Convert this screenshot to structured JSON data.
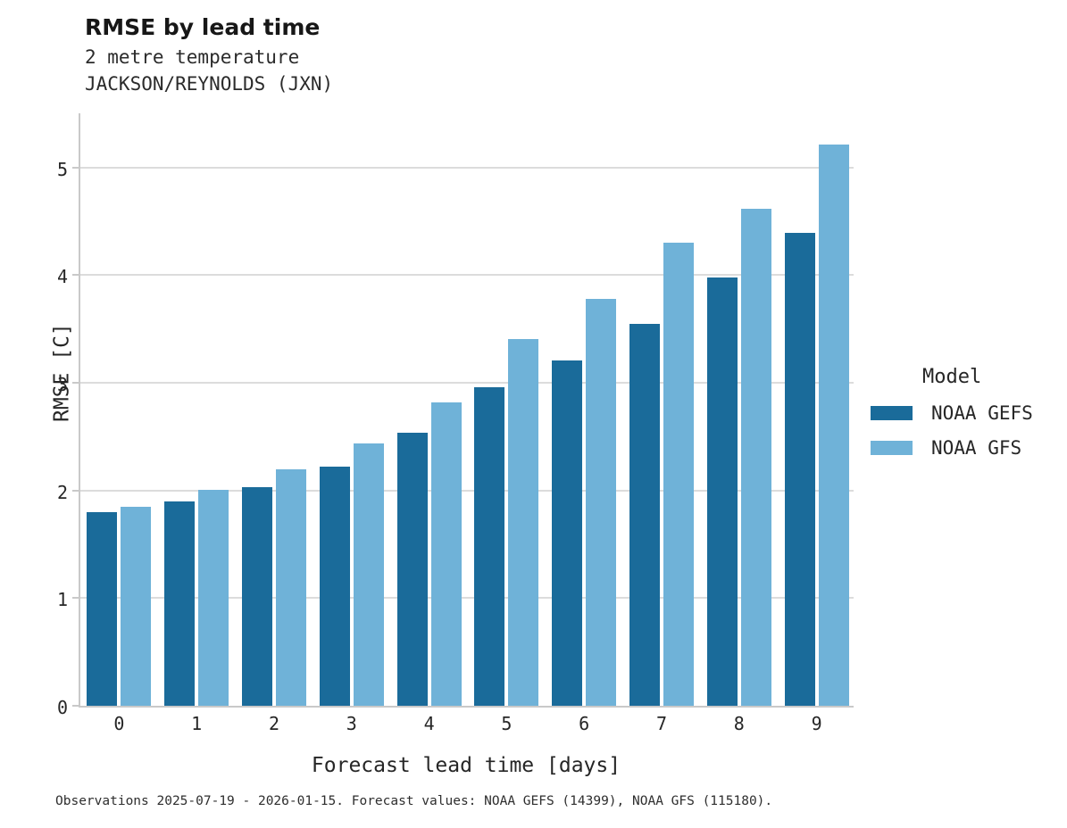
{
  "footnote": "Observations 2025-07-19 - 2026-01-15. Forecast values: NOAA GEFS (14399), NOAA GFS (115180).",
  "chart_data": {
    "type": "bar",
    "title": "RMSE by lead time",
    "subtitle": [
      "2 metre temperature",
      "JACKSON/REYNOLDS (JXN)"
    ],
    "xlabel": "Forecast lead time [days]",
    "ylabel": "RMSE [C]",
    "categories": [
      "0",
      "1",
      "2",
      "3",
      "4",
      "5",
      "6",
      "7",
      "8",
      "9"
    ],
    "series": [
      {
        "name": "NOAA GEFS",
        "color": "#1a6b9a",
        "values": [
          1.8,
          1.9,
          2.03,
          2.22,
          2.54,
          2.96,
          3.21,
          3.55,
          3.98,
          4.39
        ]
      },
      {
        "name": "NOAA GFS",
        "color": "#6fb2d8",
        "values": [
          1.85,
          2.01,
          2.2,
          2.44,
          2.82,
          3.41,
          3.78,
          4.3,
          4.62,
          5.21
        ]
      }
    ],
    "ylim": [
      0,
      5.52
    ],
    "yticks": [
      0,
      1,
      2,
      3,
      4,
      5
    ],
    "grid": "horizontal",
    "legend": {
      "title": "Model",
      "position": "right"
    }
  },
  "colors": {
    "grid": "#dcdcdc",
    "axis": "#c9c9c9",
    "text": "#262626",
    "gefs_blue": "#1a6b9a",
    "gfs_blue": "#6fb2d8"
  }
}
